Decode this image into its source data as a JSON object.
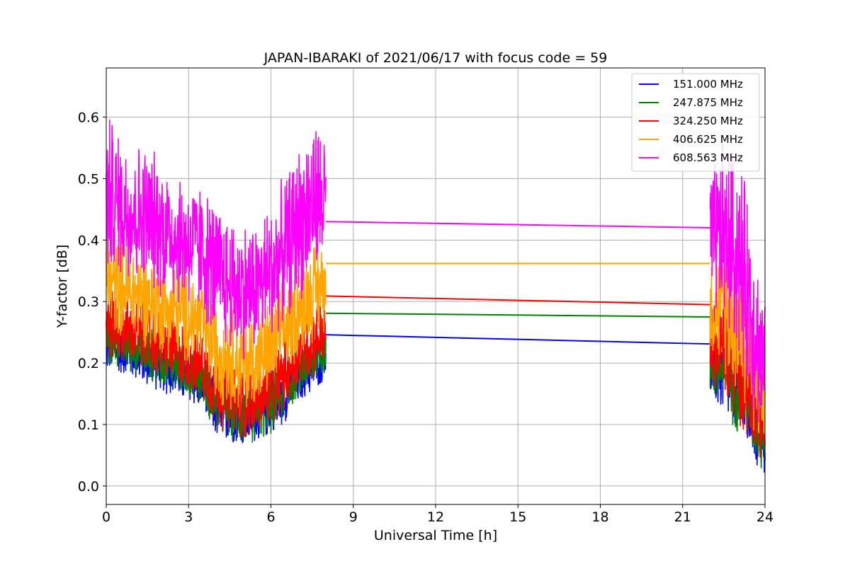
{
  "chart_data": {
    "type": "line",
    "title": "JAPAN-IBARAKI of 2021/06/17 with focus code = 59",
    "xlabel": "Universal Time [h]",
    "ylabel": "Y-factor [dB]",
    "xlim": [
      0,
      24
    ],
    "ylim": [
      -0.03,
      0.68
    ],
    "xticks": [
      0,
      3,
      6,
      9,
      12,
      15,
      18,
      21,
      24
    ],
    "yticks": [
      0.0,
      0.1,
      0.2,
      0.3,
      0.4,
      0.5,
      0.6
    ],
    "xtick_labels": [
      "0",
      "3",
      "6",
      "9",
      "12",
      "15",
      "18",
      "21",
      "24"
    ],
    "ytick_labels": [
      "0.0",
      "0.1",
      "0.2",
      "0.3",
      "0.4",
      "0.5",
      "0.6"
    ],
    "grid": true,
    "legend_position": "top-right",
    "noise_note_segments": [
      [
        0,
        8
      ],
      [
        22,
        24
      ]
    ],
    "series": [
      {
        "name": "151.000 MHz",
        "color": "#0000ff",
        "gap_line": [
          [
            8.0,
            0.246
          ],
          [
            22.0,
            0.231
          ]
        ],
        "envelope": {
          "x": [
            0,
            0.5,
            1,
            1.5,
            2,
            2.5,
            3,
            3.5,
            4,
            4.5,
            5,
            5.5,
            6,
            6.5,
            7,
            7.5,
            8,
            22,
            22.5,
            23,
            23.5,
            24
          ],
          "low": [
            0.18,
            0.18,
            0.17,
            0.16,
            0.15,
            0.14,
            0.13,
            0.12,
            0.07,
            0.07,
            0.06,
            0.07,
            0.08,
            0.1,
            0.13,
            0.15,
            0.17,
            0.13,
            0.11,
            0.07,
            0.04,
            0.0
          ],
          "high": [
            0.27,
            0.26,
            0.25,
            0.24,
            0.24,
            0.23,
            0.22,
            0.21,
            0.18,
            0.16,
            0.15,
            0.15,
            0.17,
            0.19,
            0.21,
            0.23,
            0.25,
            0.24,
            0.25,
            0.23,
            0.19,
            0.12
          ]
        }
      },
      {
        "name": "247.875 MHz",
        "color": "#008000",
        "gap_line": [
          [
            8.0,
            0.281
          ],
          [
            22.0,
            0.275
          ]
        ],
        "envelope": {
          "x": [
            0,
            0.5,
            1,
            1.5,
            2,
            2.5,
            3,
            3.5,
            4,
            4.5,
            5,
            5.5,
            6,
            6.5,
            7,
            7.5,
            8,
            22,
            22.5,
            23,
            23.5,
            24
          ],
          "low": [
            0.19,
            0.19,
            0.18,
            0.17,
            0.16,
            0.15,
            0.14,
            0.13,
            0.08,
            0.07,
            0.06,
            0.07,
            0.08,
            0.11,
            0.14,
            0.16,
            0.18,
            0.14,
            0.12,
            0.08,
            0.05,
            0.01
          ],
          "high": [
            0.29,
            0.28,
            0.27,
            0.26,
            0.26,
            0.25,
            0.24,
            0.23,
            0.2,
            0.18,
            0.17,
            0.17,
            0.19,
            0.21,
            0.23,
            0.25,
            0.27,
            0.26,
            0.27,
            0.25,
            0.21,
            0.14
          ]
        }
      },
      {
        "name": "324.250 MHz",
        "color": "#ff0000",
        "gap_line": [
          [
            8.0,
            0.309
          ],
          [
            22.0,
            0.295
          ]
        ],
        "envelope": {
          "x": [
            0,
            0.5,
            1,
            1.5,
            2,
            2.5,
            3,
            3.5,
            4,
            4.5,
            5,
            5.5,
            6,
            6.5,
            7,
            7.5,
            8,
            22,
            22.5,
            23,
            23.5,
            24
          ],
          "low": [
            0.2,
            0.2,
            0.19,
            0.18,
            0.17,
            0.16,
            0.15,
            0.14,
            0.09,
            0.08,
            0.07,
            0.08,
            0.09,
            0.12,
            0.15,
            0.17,
            0.19,
            0.15,
            0.13,
            0.09,
            0.06,
            0.02
          ],
          "high": [
            0.33,
            0.32,
            0.31,
            0.3,
            0.29,
            0.28,
            0.27,
            0.26,
            0.23,
            0.21,
            0.2,
            0.2,
            0.22,
            0.25,
            0.28,
            0.3,
            0.31,
            0.3,
            0.32,
            0.3,
            0.25,
            0.17
          ]
        }
      },
      {
        "name": "406.625 MHz",
        "color": "#ffa500",
        "gap_line": [
          [
            8.0,
            0.362
          ],
          [
            22.0,
            0.362
          ]
        ],
        "envelope": {
          "x": [
            0,
            0.5,
            1,
            1.5,
            2,
            2.5,
            3,
            3.5,
            4,
            4.5,
            5,
            5.5,
            6,
            6.5,
            7,
            7.5,
            8,
            22,
            22.5,
            23,
            23.5,
            24
          ],
          "low": [
            0.24,
            0.24,
            0.23,
            0.22,
            0.21,
            0.2,
            0.19,
            0.18,
            0.13,
            0.12,
            0.11,
            0.12,
            0.14,
            0.17,
            0.2,
            0.23,
            0.25,
            0.2,
            0.18,
            0.14,
            0.09,
            0.04
          ],
          "high": [
            0.42,
            0.41,
            0.4,
            0.39,
            0.38,
            0.37,
            0.36,
            0.35,
            0.32,
            0.3,
            0.29,
            0.29,
            0.31,
            0.34,
            0.38,
            0.4,
            0.41,
            0.38,
            0.41,
            0.4,
            0.33,
            0.22
          ]
        }
      },
      {
        "name": "608.563 MHz",
        "color": "#ff00ff",
        "gap_line": [
          [
            8.0,
            0.43
          ],
          [
            22.0,
            0.42
          ]
        ],
        "envelope": {
          "x": [
            0,
            0.5,
            1,
            1.5,
            2,
            2.5,
            3,
            3.5,
            4,
            4.5,
            5,
            5.5,
            6,
            6.5,
            7,
            7.5,
            8,
            22,
            22.5,
            23,
            23.5,
            24
          ],
          "low": [
            0.33,
            0.33,
            0.32,
            0.31,
            0.3,
            0.29,
            0.28,
            0.27,
            0.22,
            0.21,
            0.2,
            0.21,
            0.23,
            0.26,
            0.29,
            0.32,
            0.34,
            0.27,
            0.25,
            0.2,
            0.12,
            0.05
          ],
          "high": [
            0.62,
            0.58,
            0.57,
            0.56,
            0.55,
            0.52,
            0.51,
            0.5,
            0.47,
            0.45,
            0.44,
            0.44,
            0.47,
            0.51,
            0.56,
            0.6,
            0.6,
            0.52,
            0.57,
            0.56,
            0.46,
            0.3
          ]
        }
      }
    ]
  }
}
